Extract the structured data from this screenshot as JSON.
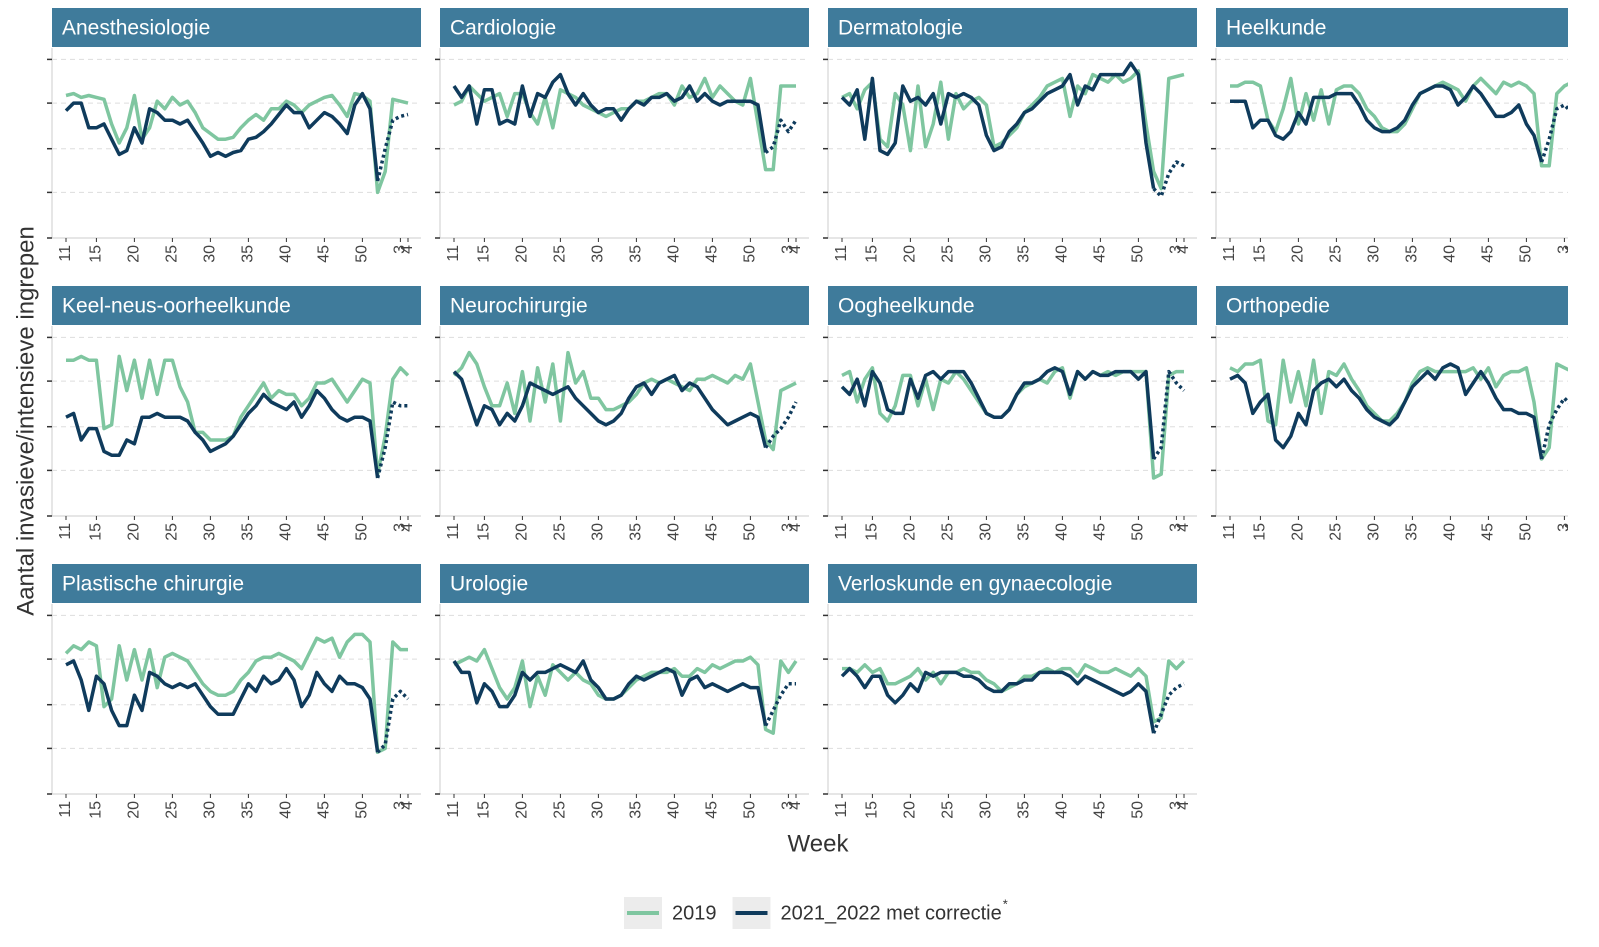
{
  "chart_data": {
    "type": "line",
    "ylabel": "Aantal invasieve/intensieve ingrepen",
    "xlabel": "Week",
    "categories": [
      "11",
      null,
      null,
      null,
      "15",
      null,
      null,
      null,
      null,
      "20",
      null,
      null,
      null,
      null,
      "25",
      null,
      null,
      null,
      null,
      "30",
      null,
      null,
      null,
      null,
      "35",
      null,
      null,
      null,
      null,
      "40",
      null,
      null,
      null,
      null,
      "45",
      null,
      null,
      null,
      null,
      "50",
      null,
      null,
      null,
      null,
      "3",
      "4"
    ],
    "ylim": [
      0,
      100
    ],
    "yticks": [
      0,
      24,
      47,
      71,
      94
    ],
    "grid": true,
    "series": [
      {
        "name": "2019",
        "color": "#7fc6a0"
      },
      {
        "name": "2021_2022 met correctie",
        "color": "#0f3b5c",
        "projection_start_index": 41
      }
    ],
    "legend_note": "*",
    "panels": [
      {
        "title": "Anesthesiologie",
        "values": [
          [
            75,
            76,
            74,
            75,
            74,
            73,
            60,
            50,
            58,
            75,
            52,
            58,
            72,
            68,
            74,
            70,
            72,
            66,
            58,
            55,
            52,
            52,
            53,
            58,
            62,
            65,
            62,
            68,
            68,
            72,
            70,
            66,
            70,
            72,
            74,
            75,
            70,
            64,
            76,
            75,
            72,
            24,
            35,
            73,
            72,
            71
          ],
          [
            67,
            71,
            71,
            58,
            58,
            60,
            52,
            44,
            46,
            58,
            50,
            68,
            66,
            62,
            62,
            60,
            62,
            56,
            50,
            43,
            45,
            43,
            45,
            46,
            52,
            53,
            56,
            60,
            65,
            70,
            66,
            66,
            58,
            62,
            66,
            64,
            60,
            55,
            70,
            76,
            68,
            30,
            47,
            62,
            64,
            65
          ]
        ]
      },
      {
        "title": "Cardiologie",
        "values": [
          [
            70,
            72,
            80,
            76,
            72,
            74,
            76,
            64,
            76,
            76,
            66,
            60,
            74,
            58,
            78,
            76,
            74,
            70,
            68,
            66,
            64,
            66,
            68,
            68,
            72,
            72,
            74,
            76,
            76,
            70,
            80,
            74,
            76,
            84,
            74,
            80,
            76,
            72,
            70,
            84,
            60,
            36,
            36,
            80,
            80,
            80
          ],
          [
            80,
            74,
            80,
            60,
            78,
            78,
            60,
            62,
            60,
            80,
            64,
            76,
            74,
            82,
            86,
            76,
            70,
            76,
            70,
            66,
            68,
            68,
            62,
            68,
            72,
            70,
            74,
            74,
            76,
            72,
            74,
            80,
            72,
            76,
            72,
            70,
            72,
            72,
            72,
            72,
            70,
            45,
            48,
            62,
            56,
            62
          ]
        ]
      },
      {
        "title": "Dermatologie",
        "values": [
          [
            74,
            76,
            68,
            78,
            82,
            52,
            48,
            76,
            70,
            46,
            80,
            48,
            60,
            82,
            52,
            76,
            68,
            72,
            74,
            70,
            48,
            50,
            54,
            58,
            66,
            70,
            74,
            80,
            82,
            84,
            64,
            80,
            76,
            86,
            84,
            82,
            86,
            82,
            84,
            88,
            60,
            35,
            26,
            84,
            85,
            86
          ],
          [
            74,
            70,
            78,
            52,
            84,
            46,
            44,
            50,
            80,
            72,
            74,
            70,
            76,
            60,
            76,
            74,
            76,
            74,
            70,
            54,
            46,
            48,
            56,
            60,
            66,
            68,
            72,
            76,
            78,
            80,
            86,
            70,
            80,
            78,
            86,
            86,
            86,
            86,
            92,
            86,
            50,
            26,
            22,
            34,
            40,
            38
          ]
        ]
      },
      {
        "title": "Heelkunde",
        "values": [
          [
            80,
            80,
            82,
            82,
            80,
            62,
            56,
            68,
            84,
            60,
            76,
            62,
            78,
            60,
            78,
            80,
            80,
            76,
            68,
            64,
            58,
            56,
            56,
            60,
            68,
            76,
            78,
            80,
            82,
            80,
            78,
            72,
            80,
            84,
            80,
            76,
            82,
            80,
            82,
            80,
            76,
            38,
            38,
            76,
            80,
            82
          ],
          [
            72,
            72,
            72,
            58,
            62,
            62,
            54,
            52,
            56,
            66,
            60,
            74,
            74,
            74,
            76,
            76,
            76,
            70,
            62,
            58,
            56,
            56,
            58,
            62,
            70,
            76,
            78,
            80,
            80,
            78,
            70,
            74,
            80,
            76,
            70,
            64,
            64,
            66,
            70,
            60,
            54,
            40,
            52,
            68,
            70,
            66
          ]
        ]
      },
      {
        "title": "Keel-neus-oorheelkunde",
        "values": [
          [
            82,
            82,
            84,
            82,
            82,
            46,
            48,
            84,
            66,
            82,
            62,
            82,
            64,
            82,
            82,
            68,
            60,
            44,
            44,
            40,
            40,
            40,
            42,
            52,
            58,
            64,
            70,
            62,
            66,
            64,
            64,
            58,
            62,
            70,
            70,
            72,
            66,
            60,
            66,
            72,
            70,
            22,
            42,
            72,
            78,
            74
          ],
          [
            52,
            54,
            40,
            46,
            46,
            34,
            32,
            32,
            40,
            38,
            52,
            52,
            54,
            52,
            52,
            52,
            50,
            44,
            40,
            34,
            36,
            38,
            42,
            48,
            54,
            58,
            64,
            60,
            58,
            56,
            60,
            52,
            58,
            66,
            62,
            56,
            52,
            50,
            52,
            52,
            50,
            20,
            36,
            60,
            58,
            58
          ]
        ]
      },
      {
        "title": "Neurochirurgie",
        "values": [
          [
            74,
            78,
            86,
            80,
            68,
            58,
            58,
            70,
            54,
            76,
            50,
            78,
            60,
            80,
            50,
            86,
            70,
            76,
            62,
            62,
            56,
            56,
            58,
            60,
            64,
            70,
            72,
            70,
            72,
            70,
            68,
            66,
            72,
            72,
            74,
            72,
            70,
            74,
            72,
            80,
            60,
            40,
            35,
            66,
            68,
            70
          ],
          [
            76,
            72,
            60,
            48,
            58,
            56,
            48,
            54,
            50,
            58,
            70,
            68,
            66,
            64,
            66,
            68,
            62,
            58,
            54,
            50,
            48,
            50,
            54,
            62,
            68,
            70,
            64,
            70,
            72,
            74,
            66,
            70,
            68,
            62,
            56,
            52,
            48,
            50,
            52,
            54,
            52,
            36,
            42,
            46,
            52,
            60
          ]
        ]
      },
      {
        "title": "Oogheelkunde",
        "values": [
          [
            74,
            76,
            60,
            72,
            78,
            54,
            50,
            58,
            74,
            74,
            58,
            72,
            56,
            72,
            70,
            76,
            72,
            66,
            60,
            54,
            52,
            52,
            56,
            64,
            68,
            70,
            72,
            70,
            76,
            78,
            62,
            76,
            72,
            76,
            74,
            76,
            74,
            76,
            76,
            76,
            76,
            20,
            22,
            74,
            76,
            76
          ],
          [
            68,
            64,
            72,
            58,
            76,
            70,
            56,
            54,
            54,
            72,
            62,
            74,
            76,
            72,
            76,
            76,
            76,
            70,
            62,
            54,
            52,
            52,
            56,
            64,
            70,
            70,
            72,
            76,
            78,
            76,
            64,
            76,
            72,
            76,
            74,
            74,
            76,
            76,
            76,
            72,
            76,
            30,
            36,
            76,
            70,
            66
          ]
        ]
      },
      {
        "title": "Orthopedie",
        "values": [
          [
            78,
            76,
            80,
            80,
            82,
            50,
            48,
            82,
            60,
            76,
            58,
            82,
            54,
            76,
            74,
            80,
            72,
            66,
            58,
            54,
            50,
            50,
            54,
            60,
            70,
            76,
            78,
            76,
            76,
            76,
            76,
            76,
            78,
            72,
            78,
            68,
            74,
            76,
            76,
            78,
            60,
            30,
            36,
            80,
            78,
            76
          ],
          [
            72,
            74,
            70,
            54,
            60,
            64,
            40,
            36,
            42,
            54,
            48,
            66,
            70,
            72,
            68,
            72,
            66,
            62,
            56,
            52,
            50,
            48,
            52,
            60,
            68,
            72,
            76,
            72,
            78,
            80,
            78,
            64,
            70,
            76,
            70,
            62,
            56,
            56,
            54,
            54,
            52,
            30,
            48,
            56,
            62,
            58
          ]
        ]
      },
      {
        "title": "Plastische chirurgie",
        "values": [
          [
            74,
            78,
            76,
            80,
            78,
            46,
            50,
            78,
            60,
            76,
            60,
            76,
            56,
            72,
            74,
            72,
            70,
            64,
            58,
            54,
            52,
            52,
            54,
            60,
            64,
            70,
            72,
            72,
            74,
            72,
            70,
            66,
            74,
            82,
            80,
            82,
            72,
            80,
            84,
            84,
            80,
            22,
            24,
            80,
            76,
            76
          ],
          [
            68,
            70,
            60,
            44,
            62,
            58,
            44,
            36,
            36,
            52,
            44,
            64,
            62,
            58,
            56,
            58,
            56,
            58,
            52,
            46,
            42,
            42,
            42,
            50,
            58,
            54,
            62,
            58,
            60,
            66,
            60,
            46,
            52,
            64,
            58,
            54,
            62,
            58,
            58,
            56,
            50,
            22,
            26,
            50,
            54,
            50
          ]
        ]
      },
      {
        "title": "Urologie",
        "values": [
          [
            68,
            70,
            72,
            70,
            76,
            66,
            56,
            50,
            56,
            70,
            46,
            62,
            52,
            68,
            64,
            60,
            64,
            60,
            58,
            52,
            50,
            50,
            52,
            56,
            60,
            62,
            64,
            64,
            64,
            66,
            62,
            62,
            66,
            64,
            68,
            66,
            68,
            70,
            70,
            72,
            68,
            34,
            32,
            70,
            64,
            70
          ],
          [
            70,
            64,
            64,
            48,
            58,
            54,
            46,
            46,
            52,
            64,
            60,
            64,
            64,
            66,
            68,
            66,
            64,
            70,
            60,
            56,
            50,
            50,
            52,
            58,
            62,
            60,
            62,
            64,
            66,
            64,
            52,
            60,
            62,
            56,
            58,
            56,
            54,
            56,
            58,
            56,
            56,
            36,
            44,
            52,
            58,
            58
          ]
        ]
      },
      {
        "title": "Verloskunde en gynaecologie",
        "values": [
          [
            66,
            66,
            64,
            68,
            64,
            66,
            58,
            58,
            60,
            62,
            66,
            60,
            64,
            58,
            64,
            64,
            66,
            64,
            64,
            60,
            58,
            54,
            56,
            58,
            62,
            62,
            64,
            66,
            64,
            66,
            66,
            62,
            68,
            66,
            64,
            64,
            66,
            64,
            62,
            66,
            62,
            38,
            40,
            70,
            66,
            70
          ],
          [
            62,
            66,
            62,
            56,
            62,
            62,
            52,
            48,
            52,
            58,
            54,
            64,
            62,
            64,
            64,
            64,
            62,
            62,
            60,
            56,
            54,
            54,
            58,
            58,
            60,
            60,
            64,
            64,
            64,
            64,
            62,
            58,
            62,
            60,
            58,
            56,
            54,
            52,
            54,
            58,
            54,
            32,
            42,
            52,
            56,
            58
          ]
        ]
      }
    ]
  }
}
